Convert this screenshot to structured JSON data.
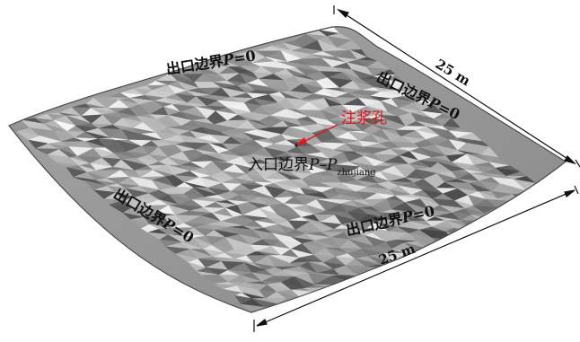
{
  "labels": {
    "outlet_top_left": {
      "prefix": "出口边界",
      "var": "P",
      "suffix": "=0"
    },
    "outlet_top_right": {
      "prefix": "出口边界",
      "var": "P",
      "suffix": "=0"
    },
    "outlet_left": {
      "prefix": "出口边界",
      "var": "P",
      "suffix": "=0"
    },
    "outlet_bottom": {
      "prefix": "出口边界",
      "var": "P",
      "suffix": "=0"
    },
    "inlet": {
      "prefix": "入口边界",
      "var1": "P",
      "dash": "–",
      "var2": "P",
      "subscript": "zhujiang"
    },
    "injection_hole": "注浆孔"
  },
  "dimensions": {
    "top": "25 m",
    "bottom": "25 m"
  },
  "colors": {
    "annotation_red": "#e0141c",
    "surface_dark": "#6c6c6c",
    "surface_light": "#f2f2f2"
  }
}
